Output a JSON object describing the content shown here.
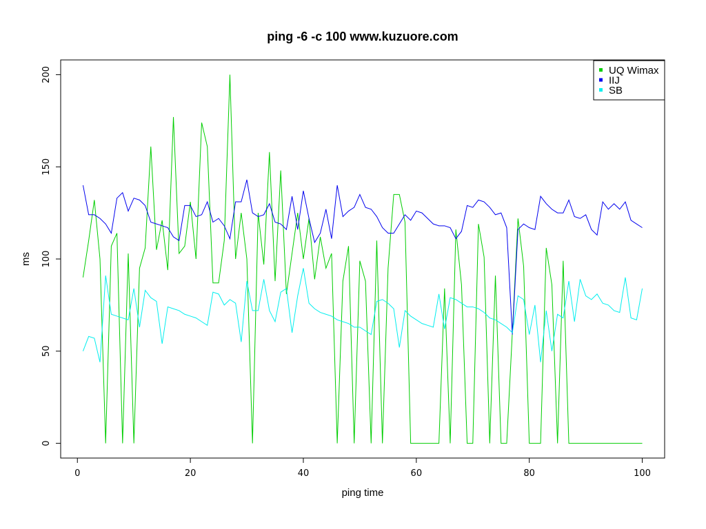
{
  "chart_data": {
    "type": "line",
    "title": "ping -6 -c 100 www.kuzuore.com",
    "x_label": "ping time",
    "y_label": "ms",
    "x": [
      1,
      2,
      3,
      4,
      5,
      6,
      7,
      8,
      9,
      10,
      11,
      12,
      13,
      14,
      15,
      16,
      17,
      18,
      19,
      20,
      21,
      22,
      23,
      24,
      25,
      26,
      27,
      28,
      29,
      30,
      31,
      32,
      33,
      34,
      35,
      36,
      37,
      38,
      39,
      40,
      41,
      42,
      43,
      44,
      45,
      46,
      47,
      48,
      49,
      50,
      51,
      52,
      53,
      54,
      55,
      56,
      57,
      58,
      59,
      60,
      61,
      62,
      63,
      64,
      65,
      66,
      67,
      68,
      69,
      70,
      71,
      72,
      73,
      74,
      75,
      76,
      77,
      78,
      79,
      80,
      81,
      82,
      83,
      84,
      85,
      86,
      87,
      88,
      89,
      90,
      91,
      92,
      93,
      94,
      95,
      96,
      97,
      98,
      99,
      100
    ],
    "series": [
      {
        "name": "UQ Wimax",
        "color": "#00cd00",
        "values": [
          90,
          110,
          132,
          100,
          0,
          107,
          114,
          0,
          103,
          0,
          95,
          106,
          161,
          105,
          121,
          94,
          177,
          103,
          107,
          131,
          100,
          174,
          161,
          87,
          87,
          110,
          200,
          100,
          125,
          100,
          0,
          125,
          97,
          158,
          88,
          148,
          81,
          103,
          125,
          100,
          122,
          89,
          112,
          95,
          103,
          0,
          88,
          107,
          0,
          99,
          88,
          0,
          110,
          0,
          95,
          135,
          135,
          120,
          0,
          0,
          0,
          0,
          0,
          0,
          84,
          0,
          116,
          86,
          0,
          0,
          119,
          101,
          0,
          91,
          0,
          0,
          60,
          122,
          96,
          0,
          0,
          0,
          106,
          86,
          0,
          99,
          0,
          0,
          0,
          0,
          0,
          0,
          0,
          0,
          0,
          0,
          0,
          0,
          0,
          0
        ]
      },
      {
        "name": "IIJ",
        "color": "#0000ee",
        "values": [
          140,
          124,
          124,
          122,
          119,
          114,
          133,
          136,
          126,
          133,
          132,
          129,
          120,
          119,
          118,
          117,
          112,
          110,
          129,
          129,
          123,
          124,
          131,
          120,
          122,
          118,
          111,
          131,
          131,
          143,
          125,
          123,
          124,
          130,
          120,
          119,
          116,
          134,
          116,
          137,
          122,
          109,
          114,
          127,
          111,
          140,
          123,
          126,
          128,
          135,
          128,
          127,
          123,
          117,
          114,
          114,
          119,
          124,
          121,
          126,
          125,
          122,
          119,
          118,
          118,
          117,
          111,
          115,
          129,
          128,
          132,
          131,
          128,
          124,
          125,
          117,
          59,
          116,
          119,
          117,
          116,
          134,
          130,
          127,
          125,
          125,
          132,
          123,
          122,
          124,
          116,
          113,
          131,
          127,
          130,
          127,
          131,
          121,
          119,
          117
        ]
      },
      {
        "name": "SB",
        "color": "#00eeee",
        "values": [
          50,
          58,
          57,
          44,
          91,
          70,
          69,
          68,
          67,
          84,
          63,
          83,
          79,
          77,
          54,
          74,
          73,
          72,
          70,
          69,
          68,
          66,
          64,
          82,
          81,
          75,
          78,
          76,
          55,
          88,
          72,
          72,
          89,
          72,
          66,
          82,
          84,
          60,
          80,
          95,
          76,
          73,
          71,
          70,
          69,
          67,
          66,
          65,
          63,
          63,
          61,
          59,
          77,
          78,
          76,
          73,
          52,
          72,
          69,
          67,
          65,
          64,
          63,
          81,
          62,
          79,
          78,
          76,
          74,
          74,
          73,
          71,
          68,
          67,
          65,
          63,
          60,
          80,
          78,
          59,
          75,
          44,
          72,
          50,
          70,
          68,
          88,
          66,
          89,
          80,
          78,
          81,
          76,
          75,
          72,
          71,
          90,
          68,
          67,
          84
        ]
      }
    ],
    "xlim": [
      -2.96,
      103.96
    ],
    "ylim": [
      -8,
      208
    ],
    "xticks": [
      0,
      20,
      40,
      60,
      80,
      100
    ],
    "yticks": [
      0,
      50,
      100,
      150,
      200
    ],
    "legend": "topright"
  }
}
